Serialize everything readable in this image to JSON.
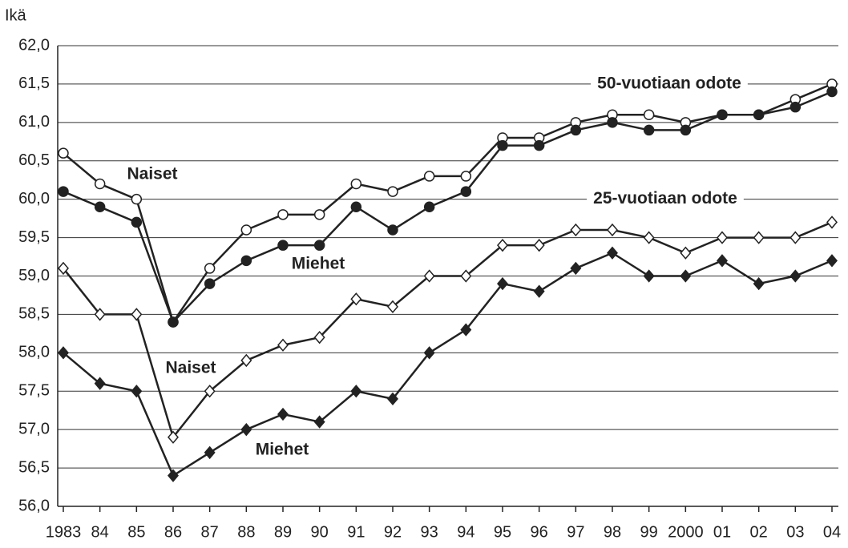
{
  "chart_data": {
    "type": "line",
    "y_label": "Ikä",
    "categories": [
      "1983",
      "84",
      "85",
      "86",
      "87",
      "88",
      "89",
      "90",
      "91",
      "92",
      "93",
      "94",
      "95",
      "96",
      "97",
      "98",
      "99",
      "2000",
      "01",
      "02",
      "03",
      "04"
    ],
    "ylim": [
      56,
      62
    ],
    "yticks": [
      {
        "value": 56,
        "label": "56,0"
      },
      {
        "value": 56.5,
        "label": "56,5"
      },
      {
        "value": 57,
        "label": "57,0"
      },
      {
        "value": 57.5,
        "label": "57,5"
      },
      {
        "value": 58,
        "label": "58,0"
      },
      {
        "value": 58.5,
        "label": "58,5"
      },
      {
        "value": 59,
        "label": "59,0"
      },
      {
        "value": 59.5,
        "label": "59,5"
      },
      {
        "value": 60,
        "label": "60,0"
      },
      {
        "value": 60.5,
        "label": "60,5"
      },
      {
        "value": 61,
        "label": "61,0"
      },
      {
        "value": 61.5,
        "label": "61,5"
      },
      {
        "value": 62,
        "label": "62,0"
      }
    ],
    "grid": true,
    "annotations": [
      "50-vuotiaan odote",
      "25-vuotiaan odote"
    ],
    "series": [
      {
        "name": "Naiset",
        "color": "#222222",
        "marker": "circle",
        "marker_fill": "#ffffff",
        "values": [
          60.6,
          60.2,
          60.0,
          58.4,
          59.1,
          59.6,
          59.8,
          59.8,
          60.2,
          60.1,
          60.3,
          60.3,
          60.8,
          60.8,
          61.0,
          61.1,
          61.1,
          61.0,
          61.1,
          61.1,
          61.3,
          61.5
        ]
      },
      {
        "name": "Miehet",
        "color": "#222222",
        "marker": "circle",
        "marker_fill": "#222222",
        "values": [
          60.1,
          59.9,
          59.7,
          58.4,
          58.9,
          59.2,
          59.4,
          59.4,
          59.9,
          59.6,
          59.9,
          60.1,
          60.7,
          60.7,
          60.9,
          61.0,
          60.9,
          60.9,
          61.1,
          61.1,
          61.2,
          61.4
        ]
      },
      {
        "name": "Naiset",
        "color": "#222222",
        "marker": "diamond",
        "marker_fill": "#ffffff",
        "values": [
          59.1,
          58.5,
          58.5,
          56.9,
          57.5,
          57.9,
          58.1,
          58.2,
          58.7,
          58.6,
          59.0,
          59.0,
          59.4,
          59.4,
          59.6,
          59.6,
          59.5,
          59.3,
          59.5,
          59.5,
          59.5,
          59.7
        ]
      },
      {
        "name": "Miehet",
        "color": "#222222",
        "marker": "diamond",
        "marker_fill": "#222222",
        "values": [
          58.0,
          57.6,
          57.5,
          56.4,
          56.7,
          57.0,
          57.2,
          57.1,
          57.5,
          57.4,
          58.0,
          58.3,
          58.9,
          58.8,
          59.1,
          59.3,
          59.0,
          59.0,
          59.2,
          58.9,
          59.0,
          59.2
        ]
      }
    ]
  }
}
